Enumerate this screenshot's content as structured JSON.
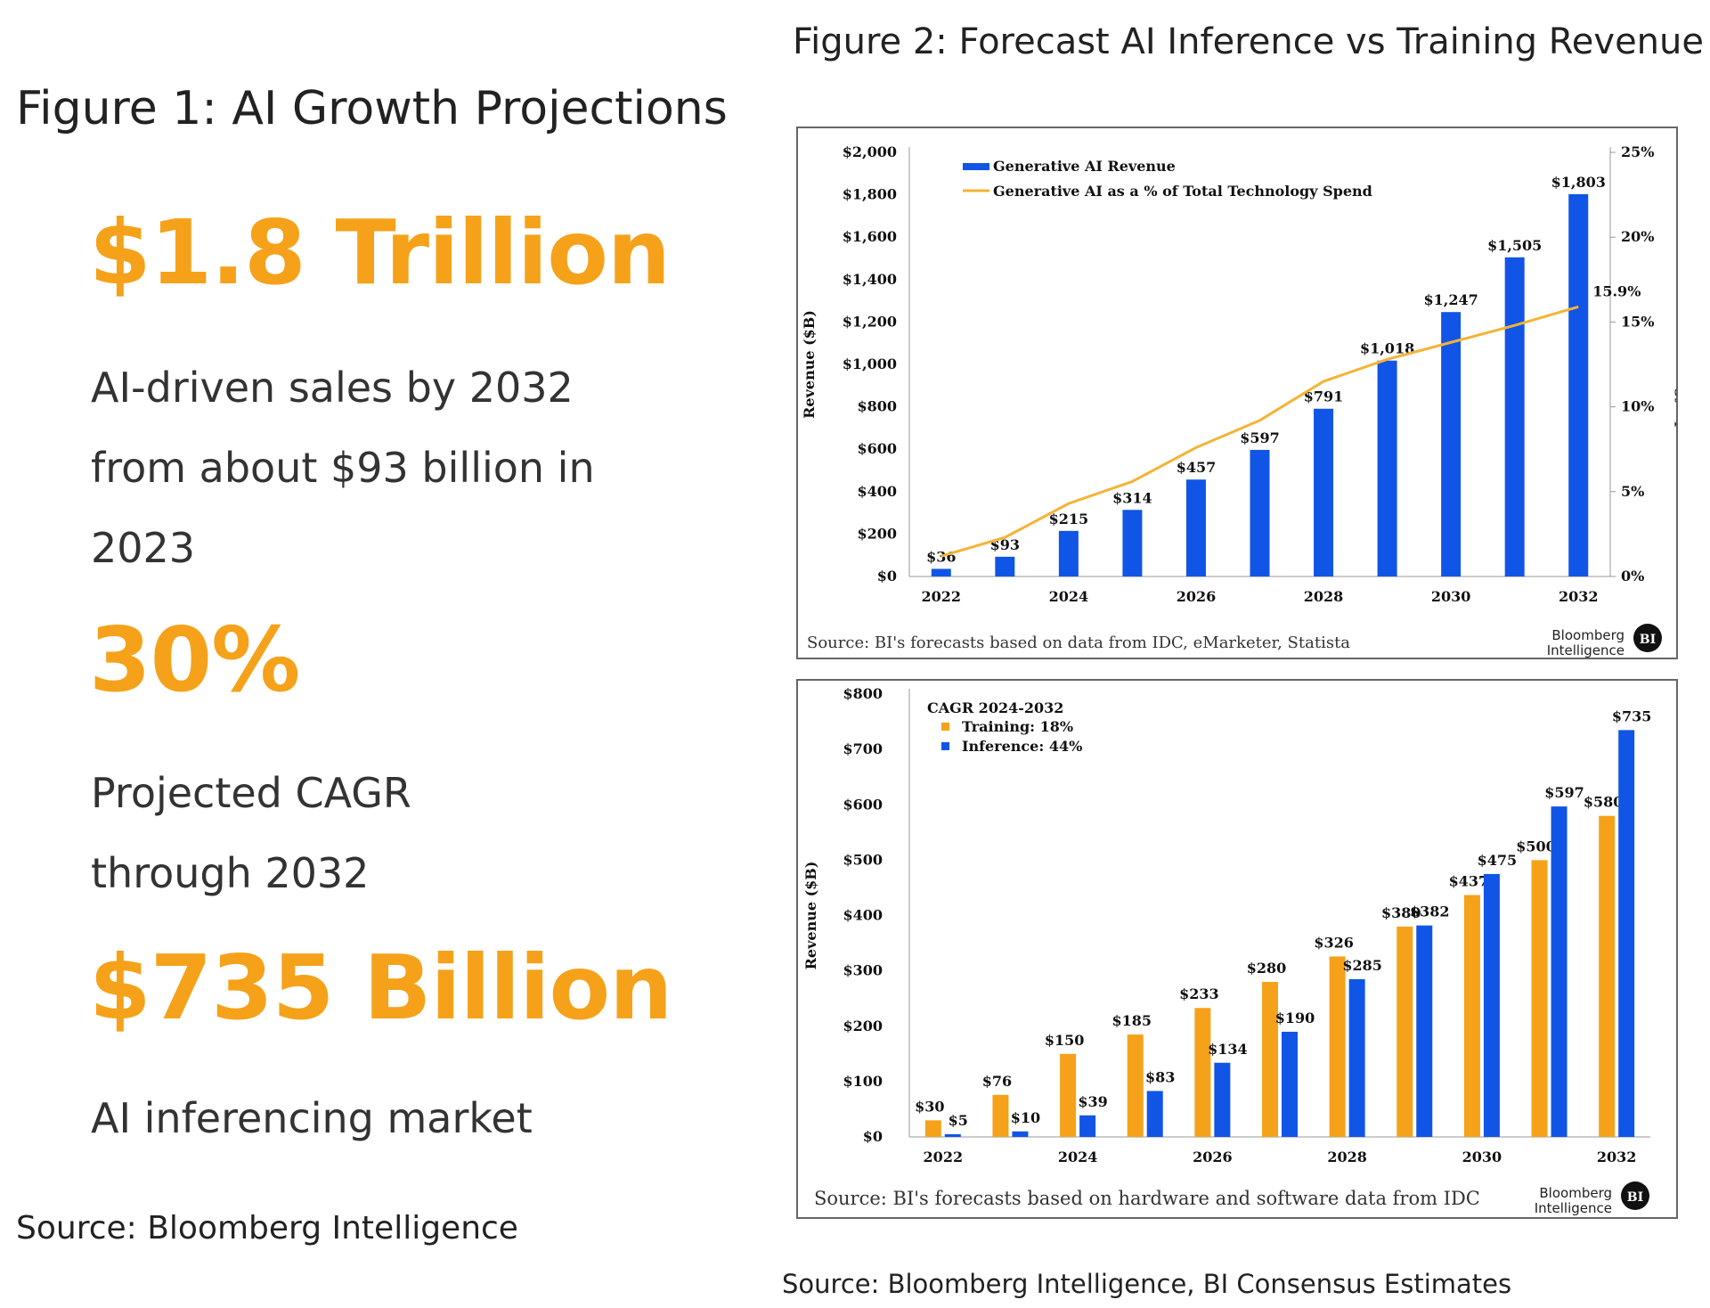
{
  "left": {
    "title": "Figure 1: AI Growth Projections",
    "stats": [
      {
        "value": "$1.8 Trillion",
        "desc": [
          "AI-driven sales by 2032",
          "from about $93 billion in",
          "2023"
        ]
      },
      {
        "value": "30%",
        "desc": [
          "Projected CAGR",
          "through 2032"
        ]
      },
      {
        "value": "$735 Billion",
        "desc": [
          "AI inferencing market"
        ]
      }
    ],
    "source": "Source: Bloomberg Intelligence"
  },
  "right": {
    "title": "Figure 2: Forecast AI Inference vs Training Revenue",
    "source": "Source: Bloomberg Intelligence, BI Consensus Estimates"
  },
  "colors": {
    "orange": "#f5a21a",
    "blue": "#1155e6",
    "line": "#f5b335"
  },
  "logo": {
    "brand": [
      "Bloomberg",
      "Intelligence"
    ],
    "mark": "BI"
  },
  "chart_data": [
    {
      "type": "bar",
      "x": [
        2022,
        2023,
        2024,
        2025,
        2026,
        2027,
        2028,
        2029,
        2030,
        2031,
        2032
      ],
      "xticks": [
        "2022",
        "2024",
        "2026",
        "2028",
        "2030",
        "2032"
      ],
      "series": [
        {
          "name": "Generative AI Revenue",
          "axis": "left",
          "values": [
            36,
            93,
            215,
            314,
            457,
            597,
            791,
            1018,
            1247,
            1505,
            1803
          ],
          "labels": [
            "$36",
            "$93",
            "$215",
            "$314",
            "$457",
            "$597",
            "$791",
            "$1,018",
            "$1,247",
            "$1,505",
            "$1,803"
          ]
        },
        {
          "name": "Generative AI as a % of Total Technology Spend",
          "type": "line",
          "axis": "right",
          "values": [
            1.2,
            2.3,
            4.3,
            5.6,
            7.6,
            9.2,
            11.5,
            12.8,
            13.8,
            14.8,
            15.9
          ],
          "end_label": "15.9%"
        }
      ],
      "ylabel": "Revenue ($B)",
      "ylim": [
        0,
        2000
      ],
      "yticks": [
        "$0",
        "$200",
        "$400",
        "$600",
        "$800",
        "$1,000",
        "$1,200",
        "$1,400",
        "$1,600",
        "$1,800",
        "$2,000"
      ],
      "y2label": "% of Total Technology Spend",
      "y2lim": [
        0,
        25
      ],
      "y2ticks": [
        "0%",
        "5%",
        "10%",
        "15%",
        "20%",
        "25%"
      ],
      "legend": "top-left",
      "source": "Source: BI's forecasts based on data from IDC, eMarketer, Statista"
    },
    {
      "type": "bar",
      "x": [
        2022,
        2023,
        2024,
        2025,
        2026,
        2027,
        2028,
        2029,
        2030,
        2031,
        2032
      ],
      "xticks": [
        "2022",
        "2024",
        "2026",
        "2028",
        "2030",
        "2032"
      ],
      "series": [
        {
          "name": "Training",
          "values": [
            30,
            76,
            150,
            185,
            233,
            280,
            326,
            380,
            437,
            500,
            580
          ],
          "labels": [
            "$30",
            "$76",
            "$150",
            "$185",
            "$233",
            "$280",
            "$326",
            "$380",
            "$437",
            "$500",
            "$580"
          ]
        },
        {
          "name": "Inference",
          "values": [
            5,
            10,
            39,
            83,
            134,
            190,
            285,
            382,
            475,
            597,
            735
          ],
          "labels": [
            "$5",
            "$10",
            "$39",
            "$83",
            "$134",
            "$190",
            "$285",
            "$382",
            "$475",
            "$597",
            "$735"
          ]
        }
      ],
      "legend_title": "CAGR 2024-2032",
      "legend_items": [
        "Training: 18%",
        "Inference: 44%"
      ],
      "ylabel": "Revenue ($B)",
      "ylim": [
        0,
        800
      ],
      "yticks": [
        "$0",
        "$100",
        "$200",
        "$300",
        "$400",
        "$500",
        "$600",
        "$700",
        "$800"
      ],
      "legend": "top-left",
      "source": "Source: BI's forecasts based on hardware and software data from IDC"
    }
  ]
}
